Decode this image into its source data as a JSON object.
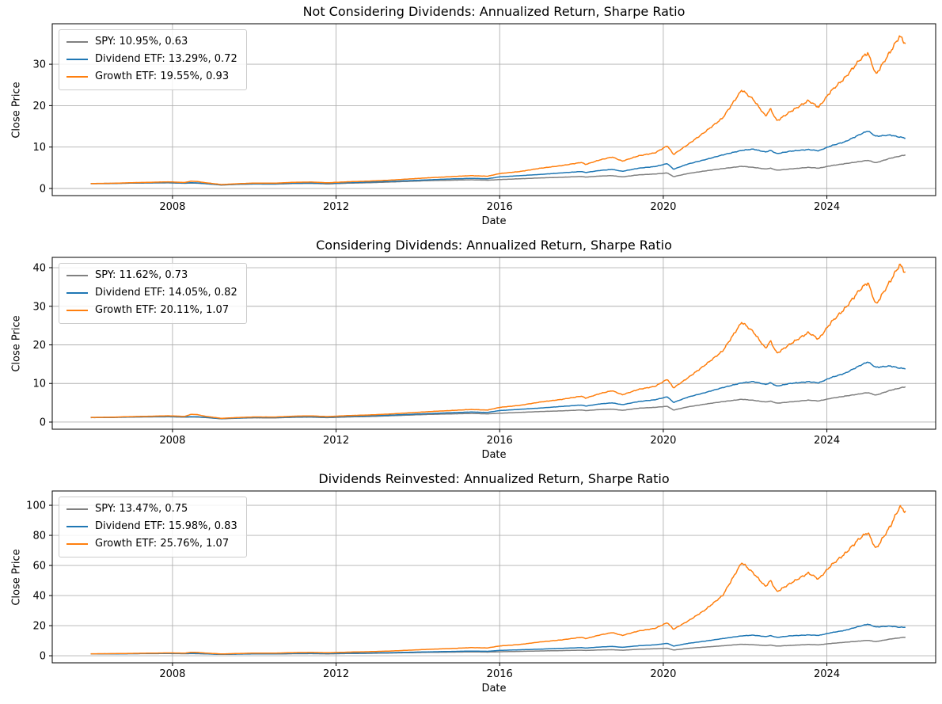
{
  "figure": {
    "background": "#ffffff"
  },
  "colors": {
    "spy": "#808080",
    "dividend_etf": "#1f77b4",
    "growth_etf": "#ff7f0e",
    "grid": "#b0b0b0",
    "frame": "#000000",
    "legend_edge": "#cccccc"
  },
  "chart_data": [
    {
      "type": "line",
      "title": "Not Considering Dividends: Annualized Return, Sharpe Ratio",
      "xlabel": "Date",
      "ylabel": "Close Price",
      "legend": [
        "SPY: 10.95%, 0.63",
        "Dividend ETF: 13.29%, 0.72",
        "Growth ETF: 19.55%, 0.93"
      ],
      "grid": true,
      "legend_position": "upper left",
      "xticks": [
        2008,
        2012,
        2016,
        2020,
        2024
      ],
      "yticks": [
        0,
        10,
        20,
        30
      ],
      "xlim": [
        2005.06,
        2026.66
      ],
      "ylim": [
        -1.72,
        39.77
      ],
      "x": [
        2006.0,
        2006.5,
        2007.0,
        2007.5,
        2007.9,
        2008.3,
        2008.45,
        2008.6,
        2008.8,
        2009.2,
        2009.6,
        2010.0,
        2010.5,
        2011.0,
        2011.4,
        2011.8,
        2012.3,
        2012.8,
        2013.3,
        2013.8,
        2014.3,
        2014.8,
        2015.3,
        2015.7,
        2016.0,
        2016.5,
        2017.0,
        2017.5,
        2018.0,
        2018.1,
        2018.45,
        2018.75,
        2019.0,
        2019.4,
        2019.8,
        2020.1,
        2020.25,
        2020.6,
        2021.0,
        2021.45,
        2021.92,
        2022.2,
        2022.5,
        2022.62,
        2022.78,
        2023.1,
        2023.55,
        2023.8,
        2024.1,
        2024.45,
        2024.8,
        2025.0,
        2025.2,
        2025.55,
        2025.78,
        2025.92
      ],
      "series": [
        {
          "name": "SPY",
          "color": "#808080",
          "values": [
            1.15,
            1.18,
            1.28,
            1.33,
            1.35,
            1.25,
            1.3,
            1.27,
            1.15,
            0.82,
            0.98,
            1.07,
            1.05,
            1.2,
            1.23,
            1.1,
            1.28,
            1.38,
            1.55,
            1.72,
            1.9,
            2.0,
            2.1,
            2.0,
            2.15,
            2.35,
            2.55,
            2.7,
            2.9,
            2.75,
            3.0,
            3.1,
            2.8,
            3.3,
            3.5,
            3.75,
            2.85,
            3.6,
            4.2,
            4.8,
            5.35,
            5.1,
            4.7,
            4.9,
            4.4,
            4.7,
            5.1,
            4.9,
            5.5,
            6.0,
            6.5,
            6.8,
            6.2,
            7.3,
            7.8,
            8.1
          ]
        },
        {
          "name": "Dividend ETF",
          "color": "#1f77b4",
          "values": [
            1.2,
            1.22,
            1.32,
            1.4,
            1.42,
            1.32,
            1.38,
            1.35,
            1.2,
            0.88,
            1.05,
            1.15,
            1.13,
            1.3,
            1.33,
            1.22,
            1.42,
            1.55,
            1.7,
            1.9,
            2.1,
            2.3,
            2.45,
            2.35,
            2.8,
            3.1,
            3.4,
            3.75,
            4.1,
            3.85,
            4.35,
            4.6,
            4.15,
            4.9,
            5.3,
            6.0,
            4.65,
            5.9,
            6.9,
            8.1,
            9.2,
            9.5,
            8.8,
            9.2,
            8.4,
            9.0,
            9.4,
            9.1,
            10.3,
            11.3,
            13.0,
            13.9,
            12.6,
            12.9,
            12.4,
            12.2
          ]
        },
        {
          "name": "Growth ETF",
          "color": "#ff7f0e",
          "values": [
            1.2,
            1.25,
            1.4,
            1.5,
            1.6,
            1.45,
            1.75,
            1.7,
            1.4,
            0.95,
            1.15,
            1.3,
            1.28,
            1.5,
            1.55,
            1.38,
            1.62,
            1.78,
            2.0,
            2.3,
            2.6,
            2.85,
            3.1,
            2.95,
            3.6,
            4.1,
            4.9,
            5.5,
            6.3,
            5.8,
            6.9,
            7.6,
            6.6,
            7.9,
            8.6,
            10.3,
            8.2,
            10.6,
            13.5,
            17.0,
            23.8,
            21.5,
            17.5,
            19.2,
            16.3,
            18.5,
            21.2,
            19.6,
            23.5,
            26.8,
            31.0,
            32.8,
            27.5,
            33.0,
            36.8,
            35.0
          ]
        }
      ]
    },
    {
      "type": "line",
      "title": "Considering Dividends: Annualized Return, Sharpe Ratio",
      "xlabel": "Date",
      "ylabel": "Close Price",
      "legend": [
        "SPY: 11.62%, 0.73",
        "Dividend ETF: 14.05%, 0.82",
        "Growth ETF: 20.11%, 1.07"
      ],
      "grid": true,
      "legend_position": "upper left",
      "xticks": [
        2008,
        2012,
        2016,
        2020,
        2024
      ],
      "yticks": [
        0,
        10,
        20,
        30,
        40
      ],
      "xlim": [
        2005.06,
        2026.66
      ],
      "ylim": [
        -1.85,
        42.67
      ],
      "x": [
        2006.0,
        2006.5,
        2007.0,
        2007.5,
        2007.9,
        2008.3,
        2008.45,
        2008.6,
        2008.8,
        2009.2,
        2009.6,
        2010.0,
        2010.5,
        2011.0,
        2011.4,
        2011.8,
        2012.3,
        2012.8,
        2013.3,
        2013.8,
        2014.3,
        2014.8,
        2015.3,
        2015.7,
        2016.0,
        2016.5,
        2017.0,
        2017.5,
        2018.0,
        2018.1,
        2018.45,
        2018.75,
        2019.0,
        2019.4,
        2019.8,
        2020.1,
        2020.25,
        2020.6,
        2021.0,
        2021.45,
        2021.92,
        2022.2,
        2022.5,
        2022.62,
        2022.78,
        2023.1,
        2023.55,
        2023.8,
        2024.1,
        2024.45,
        2024.8,
        2025.0,
        2025.2,
        2025.55,
        2025.78,
        2025.92
      ],
      "series": [
        {
          "name": "SPY",
          "color": "#808080",
          "values": [
            1.15,
            1.18,
            1.29,
            1.34,
            1.37,
            1.27,
            1.32,
            1.3,
            1.18,
            0.84,
            1.0,
            1.1,
            1.08,
            1.24,
            1.27,
            1.14,
            1.33,
            1.44,
            1.62,
            1.81,
            2.0,
            2.11,
            2.23,
            2.13,
            2.29,
            2.51,
            2.73,
            2.9,
            3.13,
            2.97,
            3.24,
            3.36,
            3.04,
            3.59,
            3.81,
            4.09,
            3.11,
            3.94,
            4.61,
            5.28,
            5.9,
            5.64,
            5.2,
            5.43,
            4.88,
            5.22,
            5.68,
            5.47,
            6.15,
            6.72,
            7.29,
            7.64,
            6.97,
            8.22,
            8.8,
            9.15
          ]
        },
        {
          "name": "Dividend ETF",
          "color": "#1f77b4",
          "values": [
            1.2,
            1.22,
            1.33,
            1.41,
            1.44,
            1.34,
            1.4,
            1.38,
            1.23,
            0.9,
            1.07,
            1.18,
            1.16,
            1.34,
            1.38,
            1.27,
            1.48,
            1.62,
            1.78,
            2.0,
            2.21,
            2.43,
            2.6,
            2.5,
            2.98,
            3.31,
            3.64,
            4.03,
            4.42,
            4.15,
            4.7,
            4.98,
            4.5,
            5.33,
            5.78,
            6.55,
            5.08,
            6.46,
            7.57,
            8.92,
            10.15,
            10.5,
            9.74,
            10.19,
            9.31,
            10.0,
            10.47,
            10.15,
            11.52,
            12.67,
            14.59,
            15.6,
            14.17,
            14.53,
            13.96,
            13.88
          ]
        },
        {
          "name": "Growth ETF",
          "color": "#ff7f0e",
          "values": [
            1.2,
            1.26,
            1.42,
            1.52,
            1.63,
            1.47,
            2.0,
            1.95,
            1.5,
            0.97,
            1.18,
            1.33,
            1.31,
            1.54,
            1.6,
            1.42,
            1.68,
            1.84,
            2.08,
            2.4,
            2.72,
            2.99,
            3.26,
            3.11,
            3.8,
            4.34,
            5.2,
            5.85,
            6.72,
            6.19,
            7.38,
            8.13,
            7.07,
            8.48,
            9.25,
            11.1,
            8.84,
            11.45,
            14.6,
            18.4,
            25.9,
            23.4,
            19.1,
            21.0,
            17.8,
            20.2,
            23.2,
            21.5,
            25.8,
            29.5,
            34.2,
            36.2,
            30.4,
            36.5,
            40.8,
            38.8
          ]
        }
      ]
    },
    {
      "type": "line",
      "title": "Dividends Reinvested: Annualized Return, Sharpe Ratio",
      "xlabel": "Date",
      "ylabel": "Close Price",
      "legend": [
        "SPY: 13.47%, 0.75",
        "Dividend ETF: 15.98%, 0.83",
        "Growth ETF: 25.76%, 1.07"
      ],
      "grid": true,
      "legend_position": "upper left",
      "xticks": [
        2008,
        2012,
        2016,
        2020,
        2024
      ],
      "yticks": [
        0,
        20,
        40,
        60,
        80,
        100
      ],
      "xlim": [
        2005.06,
        2026.66
      ],
      "ylim": [
        -4.7,
        109.5
      ],
      "x": [
        2006.0,
        2006.5,
        2007.0,
        2007.5,
        2007.9,
        2008.3,
        2008.45,
        2008.6,
        2008.8,
        2009.2,
        2009.6,
        2010.0,
        2010.5,
        2011.0,
        2011.4,
        2011.8,
        2012.3,
        2012.8,
        2013.3,
        2013.8,
        2014.3,
        2014.8,
        2015.3,
        2015.7,
        2016.0,
        2016.5,
        2017.0,
        2017.5,
        2018.0,
        2018.1,
        2018.45,
        2018.75,
        2019.0,
        2019.4,
        2019.8,
        2020.1,
        2020.25,
        2020.6,
        2021.0,
        2021.45,
        2021.92,
        2022.2,
        2022.5,
        2022.62,
        2022.78,
        2023.1,
        2023.55,
        2023.8,
        2024.1,
        2024.45,
        2024.8,
        2025.0,
        2025.2,
        2025.55,
        2025.78,
        2025.92
      ],
      "series": [
        {
          "name": "SPY",
          "color": "#808080",
          "values": [
            1.2,
            1.24,
            1.35,
            1.42,
            1.45,
            1.35,
            1.4,
            1.37,
            1.24,
            0.9,
            1.08,
            1.19,
            1.17,
            1.35,
            1.39,
            1.25,
            1.47,
            1.6,
            1.81,
            2.03,
            2.26,
            2.4,
            2.54,
            2.43,
            2.64,
            2.91,
            3.19,
            3.41,
            3.7,
            3.51,
            3.86,
            4.02,
            3.65,
            4.33,
            4.63,
            5.0,
            3.82,
            4.86,
            5.72,
            6.6,
            7.65,
            7.32,
            6.78,
            7.1,
            6.4,
            6.87,
            7.5,
            7.24,
            8.17,
            8.96,
            9.76,
            10.25,
            9.39,
            11.1,
            11.9,
            12.4
          ]
        },
        {
          "name": "Dividend ETF",
          "color": "#1f77b4",
          "values": [
            1.25,
            1.28,
            1.4,
            1.5,
            1.55,
            1.45,
            1.52,
            1.48,
            1.32,
            0.98,
            1.18,
            1.3,
            1.3,
            1.5,
            1.55,
            1.43,
            1.68,
            1.85,
            2.05,
            2.32,
            2.6,
            2.85,
            3.07,
            2.95,
            3.55,
            3.97,
            4.4,
            4.9,
            5.4,
            5.1,
            5.8,
            6.2,
            5.6,
            6.65,
            7.25,
            8.25,
            6.4,
            8.2,
            9.65,
            11.4,
            13.2,
            13.7,
            12.7,
            13.35,
            12.2,
            13.2,
            13.85,
            13.5,
            15.3,
            16.9,
            19.6,
            21.0,
            19.1,
            19.7,
            18.9,
            19.0
          ]
        },
        {
          "name": "Growth ETF",
          "color": "#ff7f0e",
          "values": [
            1.3,
            1.38,
            1.58,
            1.75,
            1.9,
            1.75,
            2.3,
            2.2,
            1.8,
            1.2,
            1.5,
            1.75,
            1.75,
            2.1,
            2.2,
            2.0,
            2.4,
            2.7,
            3.1,
            3.7,
            4.3,
            4.8,
            5.4,
            5.2,
            6.5,
            7.5,
            9.2,
            10.5,
            12.3,
            11.4,
            13.8,
            15.4,
            13.5,
            16.5,
            18.2,
            22.0,
            17.6,
            23.0,
            30.0,
            40.0,
            62.0,
            55.0,
            46.0,
            50.0,
            42.5,
            48.0,
            55.0,
            51.0,
            60.0,
            68.0,
            78.0,
            82.0,
            71.0,
            86.0,
            99.0,
            96.0
          ]
        }
      ]
    }
  ]
}
